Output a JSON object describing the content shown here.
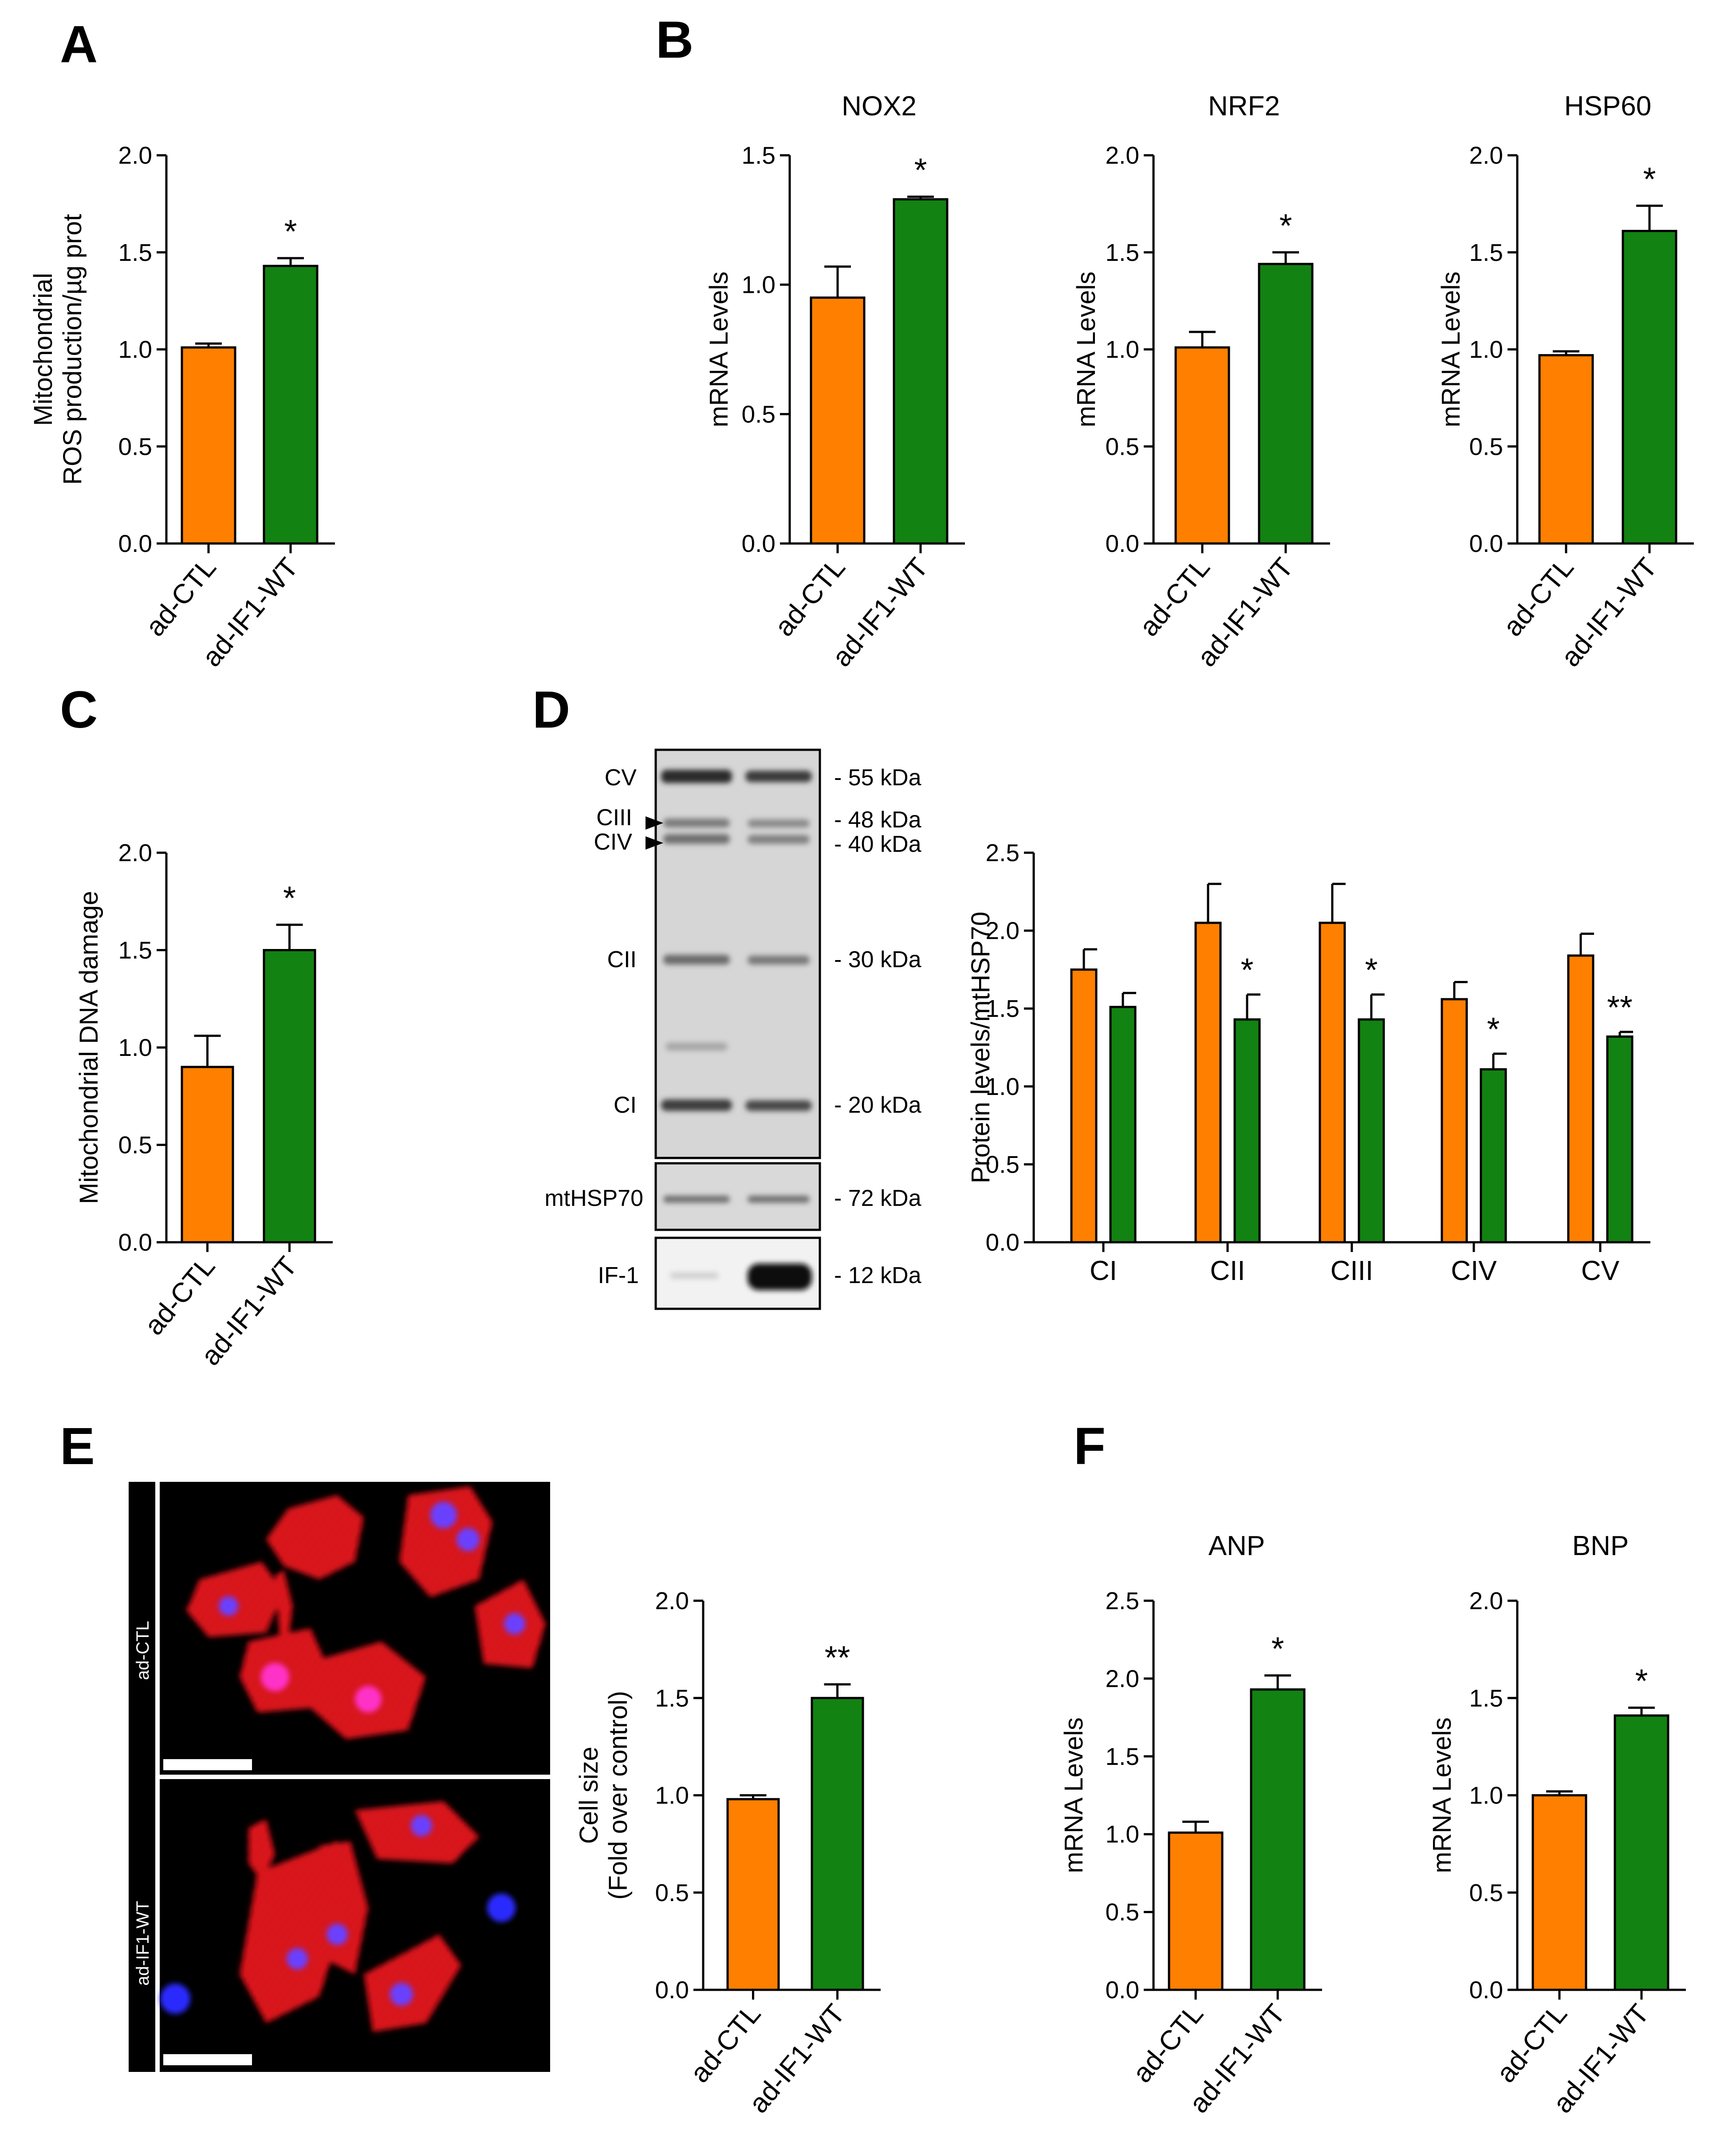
{
  "colors": {
    "ctl": "#FF8000",
    "wt": "#128212",
    "red": "#E8141C",
    "blue": "#2222FF",
    "bg": "#000000"
  },
  "panel_letters": [
    "A",
    "B",
    "C",
    "D",
    "E",
    "F"
  ],
  "chart_data": [
    {
      "id": "A",
      "type": "bar",
      "title": "",
      "ylabel": "Mitochondrial\nROS production/µg prot",
      "categories": [
        "ad-CTL",
        "ad-IF1-WT"
      ],
      "values": [
        1.01,
        1.43
      ],
      "errors": [
        0.02,
        0.04
      ],
      "ylim": [
        0,
        2.0
      ],
      "yticks": [
        "0.0",
        "0.5",
        "1.0",
        "1.5",
        "2.0"
      ],
      "annotations": [
        "",
        "*"
      ]
    },
    {
      "id": "B1",
      "type": "bar",
      "title": "NOX2",
      "ylabel": "mRNA Levels",
      "categories": [
        "ad-CTL",
        "ad-IF1-WT"
      ],
      "values": [
        0.95,
        1.33
      ],
      "errors": [
        0.12,
        0.01
      ],
      "ylim": [
        0,
        1.5
      ],
      "yticks": [
        "0.0",
        "0.5",
        "1.0",
        "1.5"
      ],
      "annotations": [
        "",
        "*"
      ]
    },
    {
      "id": "B2",
      "type": "bar",
      "title": "NRF2",
      "ylabel": "mRNA Levels",
      "categories": [
        "ad-CTL",
        "ad-IF1-WT"
      ],
      "values": [
        1.01,
        1.44
      ],
      "errors": [
        0.08,
        0.06
      ],
      "ylim": [
        0,
        2.0
      ],
      "yticks": [
        "0.0",
        "0.5",
        "1.0",
        "1.5",
        "2.0"
      ],
      "annotations": [
        "",
        "*"
      ]
    },
    {
      "id": "B3",
      "type": "bar",
      "title": "HSP60",
      "ylabel": "mRNA Levels",
      "categories": [
        "ad-CTL",
        "ad-IF1-WT"
      ],
      "values": [
        0.97,
        1.61
      ],
      "errors": [
        0.02,
        0.13
      ],
      "ylim": [
        0,
        2.0
      ],
      "yticks": [
        "0.0",
        "0.5",
        "1.0",
        "1.5",
        "2.0"
      ],
      "annotations": [
        "",
        "*"
      ]
    },
    {
      "id": "C",
      "type": "bar",
      "title": "",
      "ylabel": "Mitochondrial DNA damage",
      "categories": [
        "ad-CTL",
        "ad-IF1-WT"
      ],
      "values": [
        0.9,
        1.5
      ],
      "errors": [
        0.16,
        0.13
      ],
      "ylim": [
        0,
        2.0
      ],
      "yticks": [
        "0.0",
        "0.5",
        "1.0",
        "1.5",
        "2.0"
      ],
      "annotations": [
        "",
        "*"
      ]
    },
    {
      "id": "D",
      "type": "bar",
      "title": "",
      "ylabel": "Protein levels/mtHSP70",
      "categories": [
        "CI",
        "CII",
        "CIII",
        "CIV",
        "CV"
      ],
      "series": [
        {
          "values": [
            1.75,
            2.05,
            2.05,
            1.56,
            1.84
          ],
          "errors": [
            0.13,
            0.25,
            0.25,
            0.11,
            0.14
          ]
        },
        {
          "values": [
            1.51,
            1.43,
            1.43,
            1.11,
            1.32
          ],
          "errors": [
            0.09,
            0.16,
            0.16,
            0.1,
            0.03
          ]
        }
      ],
      "ylim": [
        0,
        2.5
      ],
      "yticks": [
        "0.0",
        "0.5",
        "1.0",
        "1.5",
        "2.0",
        "2.5"
      ],
      "annotations": [
        "",
        "*",
        "*",
        "*",
        "**"
      ]
    },
    {
      "id": "E",
      "type": "bar",
      "title": "",
      "ylabel": "Cell size\n(Fold over control)",
      "categories": [
        "ad-CTL",
        "ad-IF1-WT"
      ],
      "values": [
        0.98,
        1.5
      ],
      "errors": [
        0.02,
        0.07
      ],
      "ylim": [
        0,
        2.0
      ],
      "yticks": [
        "0.0",
        "0.5",
        "1.0",
        "1.5",
        "2.0"
      ],
      "annotations": [
        "",
        "**"
      ]
    },
    {
      "id": "F1",
      "type": "bar",
      "title": "ANP",
      "ylabel": "mRNA Levels",
      "categories": [
        "ad-CTL",
        "ad-IF1-WT"
      ],
      "values": [
        1.01,
        1.93
      ],
      "errors": [
        0.07,
        0.09
      ],
      "ylim": [
        0,
        2.5
      ],
      "yticks": [
        "0.0",
        "0.5",
        "1.0",
        "1.5",
        "2.0",
        "2.5"
      ],
      "annotations": [
        "",
        "*"
      ]
    },
    {
      "id": "F2",
      "type": "bar",
      "title": "BNP",
      "ylabel": "mRNA Levels",
      "categories": [
        "ad-CTL",
        "ad-IF1-WT"
      ],
      "values": [
        1.0,
        1.41
      ],
      "errors": [
        0.02,
        0.04
      ],
      "ylim": [
        0,
        2.0
      ],
      "yticks": [
        "0.0",
        "0.5",
        "1.0",
        "1.5",
        "2.0"
      ],
      "annotations": [
        "",
        "*"
      ]
    }
  ],
  "western_blot": {
    "row_labels": [
      "CV",
      "CIII",
      "CIV",
      "CII",
      "CI",
      "mtHSP70",
      "IF-1"
    ],
    "kda_labels": [
      "- 55 kDa",
      "- 48 kDa",
      "- 40 kDa",
      "- 30 kDa",
      "- 20 kDa",
      "- 72 kDa",
      "- 12 kDa"
    ]
  },
  "micrographs": {
    "labels": [
      "ad-CTL",
      "ad-IF1-WT"
    ]
  }
}
